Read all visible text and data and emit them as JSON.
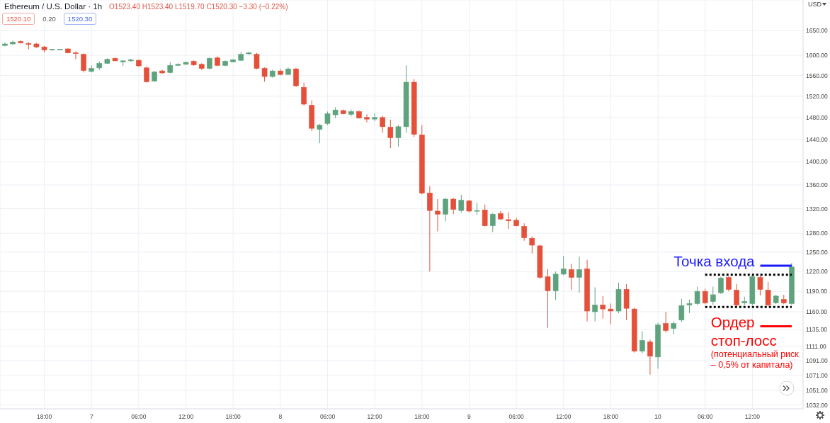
{
  "chart_data": {
    "type": "candlestick",
    "title": "Ethereum / U.S. Dollar · 1h",
    "subtitle": "O1523.40 H1523.40 L1519.70 C1520.30 −3.30 (−0.22%)",
    "ylabel": "USD",
    "categories": [
      null,
      null,
      null,
      null,
      null,
      "18:00",
      null,
      null,
      null,
      null,
      null,
      "7",
      null,
      null,
      null,
      null,
      null,
      "06:00",
      null,
      null,
      null,
      null,
      null,
      "12:00",
      null,
      null,
      null,
      null,
      null,
      "18:00",
      null,
      null,
      null,
      null,
      null,
      "8",
      null,
      null,
      null,
      null,
      null,
      "06:00",
      null,
      null,
      null,
      null,
      null,
      "12:00",
      null,
      null,
      null,
      null,
      null,
      "18:00",
      null,
      null,
      null,
      null,
      null,
      "9",
      null,
      null,
      null,
      null,
      null,
      "06:00",
      null,
      null,
      null,
      null,
      null,
      "12:00",
      null,
      null,
      null,
      null,
      null,
      "18:00",
      null,
      null,
      null,
      null,
      null,
      "10",
      null,
      null,
      null,
      null,
      null,
      "06:00",
      null,
      null,
      null,
      null,
      null,
      "12:00",
      null,
      null,
      null,
      null,
      null
    ],
    "ohlc": [
      [
        1620,
        1626,
        1618,
        1623
      ],
      [
        1623,
        1630,
        1622,
        1627
      ],
      [
        1628,
        1631,
        1624,
        1625
      ],
      [
        1624,
        1627,
        1612,
        1622
      ],
      [
        1623,
        1625,
        1615,
        1617
      ],
      [
        1617,
        1619,
        1606,
        1611
      ],
      [
        1611,
        1613,
        1609,
        1612
      ],
      [
        1611,
        1613,
        1610,
        1612
      ],
      [
        1613,
        1614,
        1604,
        1605
      ],
      [
        1605,
        1608,
        1592,
        1604
      ],
      [
        1602,
        1604,
        1566,
        1570
      ],
      [
        1568,
        1580,
        1566,
        1574
      ],
      [
        1575,
        1588,
        1571,
        1584
      ],
      [
        1584,
        1594,
        1583,
        1592
      ],
      [
        1594,
        1596,
        1588,
        1589
      ],
      [
        1587,
        1590,
        1579,
        1589
      ],
      [
        1589,
        1593,
        1587,
        1591
      ],
      [
        1590,
        1592,
        1577,
        1579
      ],
      [
        1575,
        1578,
        1546,
        1548
      ],
      [
        1549,
        1569,
        1548,
        1567
      ],
      [
        1569,
        1571,
        1564,
        1565
      ],
      [
        1566,
        1586,
        1564,
        1580
      ],
      [
        1580,
        1584,
        1579,
        1582
      ],
      [
        1582,
        1588,
        1581,
        1586
      ],
      [
        1588,
        1590,
        1579,
        1581
      ],
      [
        1582,
        1584,
        1571,
        1574
      ],
      [
        1574,
        1596,
        1572,
        1594
      ],
      [
        1595,
        1598,
        1578,
        1580
      ],
      [
        1580,
        1590,
        1578,
        1588
      ],
      [
        1587,
        1593,
        1586,
        1591
      ],
      [
        1590,
        1607,
        1589,
        1602
      ],
      [
        1603,
        1607,
        1601,
        1605
      ],
      [
        1602,
        1605,
        1572,
        1574
      ],
      [
        1574,
        1576,
        1548,
        1558
      ],
      [
        1558,
        1571,
        1556,
        1569
      ],
      [
        1569,
        1573,
        1560,
        1562
      ],
      [
        1562,
        1576,
        1561,
        1573
      ],
      [
        1573,
        1575,
        1538,
        1540
      ],
      [
        1537,
        1546,
        1502,
        1505
      ],
      [
        1503,
        1512,
        1455,
        1460
      ],
      [
        1458,
        1468,
        1433,
        1466
      ],
      [
        1469,
        1491,
        1466,
        1487
      ],
      [
        1485,
        1499,
        1479,
        1494
      ],
      [
        1493,
        1495,
        1486,
        1487
      ],
      [
        1486,
        1495,
        1482,
        1491
      ],
      [
        1491,
        1493,
        1478,
        1479
      ],
      [
        1480,
        1486,
        1471,
        1477
      ],
      [
        1477,
        1488,
        1473,
        1480
      ],
      [
        1480,
        1483,
        1452,
        1463
      ],
      [
        1462,
        1476,
        1424,
        1443
      ],
      [
        1443,
        1466,
        1427,
        1463
      ],
      [
        1463,
        1580,
        1452,
        1547
      ],
      [
        1547,
        1553,
        1444,
        1449
      ],
      [
        1448,
        1466,
        1344,
        1346
      ],
      [
        1346,
        1358,
        1220,
        1317
      ],
      [
        1316,
        1336,
        1283,
        1311
      ],
      [
        1311,
        1338,
        1299,
        1336
      ],
      [
        1336,
        1338,
        1311,
        1319
      ],
      [
        1317,
        1343,
        1314,
        1334
      ],
      [
        1333,
        1335,
        1314,
        1316
      ],
      [
        1316,
        1330,
        1310,
        1317
      ],
      [
        1318,
        1327,
        1291,
        1292
      ],
      [
        1292,
        1313,
        1282,
        1311
      ],
      [
        1312,
        1316,
        1302,
        1303
      ],
      [
        1302,
        1314,
        1287,
        1300
      ],
      [
        1301,
        1305,
        1291,
        1292
      ],
      [
        1291,
        1296,
        1268,
        1273
      ],
      [
        1272,
        1275,
        1248,
        1261
      ],
      [
        1260,
        1262,
        1209,
        1211
      ],
      [
        1212,
        1224,
        1137,
        1191
      ],
      [
        1191,
        1220,
        1177,
        1216
      ],
      [
        1216,
        1244,
        1214,
        1224
      ],
      [
        1223,
        1232,
        1192,
        1211
      ],
      [
        1211,
        1243,
        1188,
        1223
      ],
      [
        1224,
        1238,
        1146,
        1161
      ],
      [
        1160,
        1196,
        1146,
        1170
      ],
      [
        1170,
        1183,
        1150,
        1164
      ],
      [
        1164,
        1172,
        1142,
        1161
      ],
      [
        1161,
        1203,
        1158,
        1193
      ],
      [
        1193,
        1201,
        1148,
        1165
      ],
      [
        1164,
        1166,
        1102,
        1104
      ],
      [
        1104,
        1132,
        1101,
        1119
      ],
      [
        1117,
        1120,
        1072,
        1097
      ],
      [
        1096,
        1144,
        1080,
        1141
      ],
      [
        1143,
        1160,
        1130,
        1133
      ],
      [
        1136,
        1146,
        1128,
        1143
      ],
      [
        1148,
        1179,
        1145,
        1169
      ],
      [
        1170,
        1178,
        1158,
        1172
      ],
      [
        1172,
        1197,
        1170,
        1190
      ],
      [
        1190,
        1194,
        1171,
        1173
      ],
      [
        1175,
        1197,
        1170,
        1185
      ],
      [
        1188,
        1212,
        1186,
        1210
      ],
      [
        1211,
        1213,
        1190,
        1193
      ],
      [
        1192,
        1201,
        1168,
        1170
      ],
      [
        1173,
        1182,
        1170,
        1175
      ],
      [
        1172,
        1215,
        1170,
        1212
      ],
      [
        1211,
        1214,
        1184,
        1193
      ],
      [
        1192,
        1204,
        1168,
        1170
      ],
      [
        1173,
        1185,
        1171,
        1183
      ],
      [
        1178,
        1185,
        1171,
        1173
      ],
      [
        1172,
        1233,
        1170,
        1227
      ]
    ],
    "colors": [
      "#5fa37e",
      "#5fa37e",
      "#e4503a",
      "#e4503a",
      "#e4503a",
      "#e4503a",
      "#5fa37e",
      "#5fa37e",
      "#e4503a",
      "#e4503a",
      "#e4503a",
      "#5fa37e",
      "#5fa37e",
      "#5fa37e",
      "#e4503a",
      "#5fa37e",
      "#5fa37e",
      "#e4503a",
      "#e4503a",
      "#5fa37e",
      "#e4503a",
      "#5fa37e",
      "#5fa37e",
      "#5fa37e",
      "#e4503a",
      "#e4503a",
      "#5fa37e",
      "#e4503a",
      "#5fa37e",
      "#5fa37e",
      "#5fa37e",
      "#5fa37e",
      "#e4503a",
      "#e4503a",
      "#5fa37e",
      "#e4503a",
      "#5fa37e",
      "#e4503a",
      "#e4503a",
      "#e4503a",
      "#5fa37e",
      "#5fa37e",
      "#5fa37e",
      "#e4503a",
      "#5fa37e",
      "#e4503a",
      "#e4503a",
      "#5fa37e",
      "#e4503a",
      "#e4503a",
      "#5fa37e",
      "#5fa37e",
      "#e4503a",
      "#e4503a",
      "#e4503a",
      "#e4503a",
      "#5fa37e",
      "#e4503a",
      "#5fa37e",
      "#e4503a",
      "#5fa37e",
      "#e4503a",
      "#5fa37e",
      "#e4503a",
      "#e4503a",
      "#e4503a",
      "#e4503a",
      "#e4503a",
      "#e4503a",
      "#e4503a",
      "#5fa37e",
      "#5fa37e",
      "#e4503a",
      "#5fa37e",
      "#e4503a",
      "#5fa37e",
      "#e4503a",
      "#e4503a",
      "#5fa37e",
      "#e4503a",
      "#e4503a",
      "#5fa37e",
      "#e4503a",
      "#5fa37e",
      "#e4503a",
      "#5fa37e",
      "#5fa37e",
      "#5fa37e",
      "#5fa37e",
      "#e4503a",
      "#5fa37e",
      "#5fa37e",
      "#e4503a",
      "#e4503a",
      "#5fa37e",
      "#5fa37e",
      "#e4503a",
      "#e4503a",
      "#5fa37e",
      "#e4503a",
      "#5fa37e"
    ],
    "series": [
      {
        "type": "line",
        "color": "#000000",
        "line_style": "dotted",
        "values": [
          null,
          null,
          null,
          null,
          null,
          null,
          null,
          null,
          null,
          null,
          null,
          null,
          null,
          null,
          null,
          null,
          null,
          null,
          null,
          null,
          null,
          null,
          null,
          null,
          null,
          null,
          null,
          null,
          null,
          null,
          null,
          null,
          null,
          null,
          null,
          null,
          null,
          null,
          null,
          null,
          null,
          null,
          null,
          null,
          null,
          null,
          null,
          null,
          null,
          null,
          null,
          null,
          null,
          null,
          null,
          null,
          null,
          null,
          null,
          null,
          null,
          null,
          null,
          null,
          null,
          null,
          null,
          null,
          null,
          null,
          null,
          null,
          null,
          null,
          null,
          null,
          null,
          null,
          null,
          null,
          null,
          null,
          null,
          null,
          null,
          null,
          null,
          null,
          null,
          1215,
          1215,
          1215,
          1215,
          1215,
          1215,
          1215,
          1215,
          1215,
          1215,
          1215,
          1215
        ]
      },
      {
        "type": "line",
        "color": "#000000",
        "line_style": "dotted",
        "values": [
          null,
          null,
          null,
          null,
          null,
          null,
          null,
          null,
          null,
          null,
          null,
          null,
          null,
          null,
          null,
          null,
          null,
          null,
          null,
          null,
          null,
          null,
          null,
          null,
          null,
          null,
          null,
          null,
          null,
          null,
          null,
          null,
          null,
          null,
          null,
          null,
          null,
          null,
          null,
          null,
          null,
          null,
          null,
          null,
          null,
          null,
          null,
          null,
          null,
          null,
          null,
          null,
          null,
          null,
          null,
          null,
          null,
          null,
          null,
          null,
          null,
          null,
          null,
          null,
          null,
          null,
          null,
          null,
          null,
          null,
          null,
          null,
          null,
          null,
          null,
          null,
          null,
          null,
          null,
          null,
          null,
          null,
          null,
          null,
          null,
          null,
          null,
          null,
          null,
          1167,
          1167,
          1167,
          1167,
          1167,
          1167,
          1167,
          1167,
          1167,
          1167,
          1167,
          1167
        ]
      },
      {
        "type": "line",
        "name": "Точка входа",
        "color": "#1a1aff",
        "line_style": "solid",
        "values": [
          null,
          null,
          null,
          null,
          null,
          null,
          null,
          null,
          null,
          null,
          null,
          null,
          null,
          null,
          null,
          null,
          null,
          null,
          null,
          null,
          null,
          null,
          null,
          null,
          null,
          null,
          null,
          null,
          null,
          null,
          null,
          null,
          null,
          null,
          null,
          null,
          null,
          null,
          null,
          null,
          null,
          null,
          null,
          null,
          null,
          null,
          null,
          null,
          null,
          null,
          null,
          null,
          null,
          null,
          null,
          null,
          null,
          null,
          null,
          null,
          null,
          null,
          null,
          null,
          null,
          null,
          null,
          null,
          null,
          null,
          null,
          null,
          null,
          null,
          null,
          null,
          null,
          null,
          null,
          null,
          null,
          null,
          null,
          null,
          null,
          null,
          null,
          null,
          null,
          null,
          null,
          null,
          null,
          null,
          null,
          null,
          1229,
          1229,
          1229,
          1229,
          1229
        ]
      },
      {
        "type": "line",
        "name": "Ордер\nстоп-лосс",
        "color": "#ff0000",
        "line_style": "solid",
        "values": [
          null,
          null,
          null,
          null,
          null,
          null,
          null,
          null,
          null,
          null,
          null,
          null,
          null,
          null,
          null,
          null,
          null,
          null,
          null,
          null,
          null,
          null,
          null,
          null,
          null,
          null,
          null,
          null,
          null,
          null,
          null,
          null,
          null,
          null,
          null,
          null,
          null,
          null,
          null,
          null,
          null,
          null,
          null,
          null,
          null,
          null,
          null,
          null,
          null,
          null,
          null,
          null,
          null,
          null,
          null,
          null,
          null,
          null,
          null,
          null,
          null,
          null,
          null,
          null,
          null,
          null,
          null,
          null,
          null,
          null,
          null,
          null,
          null,
          null,
          null,
          null,
          null,
          null,
          null,
          null,
          null,
          null,
          null,
          null,
          null,
          null,
          null,
          null,
          null,
          null,
          null,
          null,
          null,
          null,
          null,
          null,
          1139,
          1139,
          1139,
          1139,
          1139
        ]
      }
    ],
    "ylim": [
      1027,
      1715
    ],
    "yticks": [
      {
        "value": 1650,
        "label": "1650.00"
      },
      {
        "value": 1600,
        "label": "1600.00"
      },
      {
        "value": 1560,
        "label": "1560.00"
      },
      {
        "value": 1520,
        "label": "1520.00"
      },
      {
        "value": 1480,
        "label": "1480.00"
      },
      {
        "value": 1440,
        "label": "1440.00"
      },
      {
        "value": 1400,
        "label": "1400.00"
      },
      {
        "value": 1360,
        "label": "1360.00"
      },
      {
        "value": 1320,
        "label": "1320.00"
      },
      {
        "value": 1280,
        "label": "1280.00"
      },
      {
        "value": 1250,
        "label": "1250.00"
      },
      {
        "value": 1220,
        "label": "1220.00"
      },
      {
        "value": 1190,
        "label": "1190.00"
      },
      {
        "value": 1160,
        "label": "1160.00"
      },
      {
        "value": 1135,
        "label": "1135.00"
      },
      {
        "value": 1111,
        "label": "1111.00"
      },
      {
        "value": 1091,
        "label": "1091.00"
      },
      {
        "value": 1071,
        "label": "1071.00"
      },
      {
        "value": 1051,
        "label": "1051.00"
      },
      {
        "value": 1032,
        "label": "1032.00"
      }
    ],
    "log": true,
    "grid": true,
    "annotations": [
      "(потенциальный риск\n– 0,5% от капитала)",
      "1520.10",
      "0.20",
      "1520.30"
    ]
  }
}
